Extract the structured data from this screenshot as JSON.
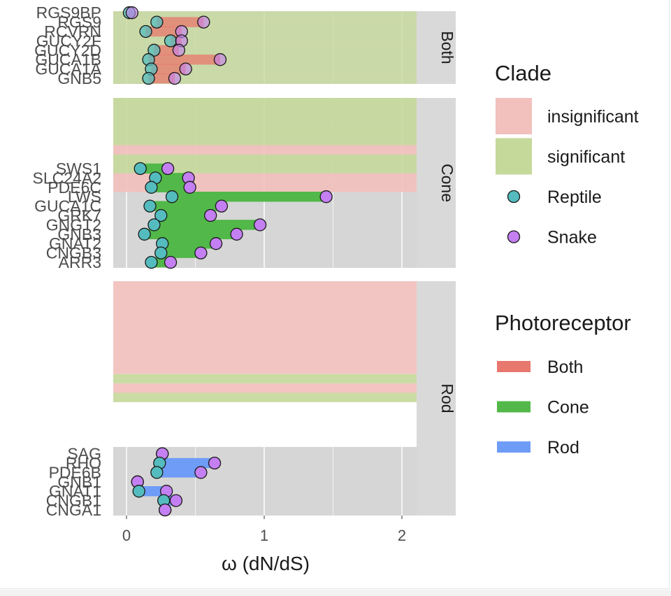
{
  "chart_data": {
    "type": "scatter",
    "xlabel": "ω (dN/dS)",
    "xlim": [
      -0.1,
      2.4
    ],
    "x_ticks": [
      "0",
      "1",
      "2"
    ],
    "x_tick_values": [
      0,
      1,
      2
    ],
    "colors": {
      "panel_bg": "#d6d6d6",
      "grid": "#f4f4f4",
      "strip_bg": "#d9d9d9",
      "insignificant": "#f2c0bd",
      "significant": "#c5d99b",
      "photo_Both": "#e8776e",
      "photo_Cone": "#52b849",
      "photo_Rod": "#6e9cf7",
      "Reptile": "#54bcbe",
      "Snake": "#c47ff2",
      "point_stroke": "#1a1a1a"
    },
    "panels": [
      {
        "strip": "Both",
        "genes": [
          {
            "name": "RGS9BP",
            "reptile": 0.02,
            "snake": 0.04,
            "clade": "significant"
          },
          {
            "name": "RGS9",
            "reptile": 0.22,
            "snake": 0.56,
            "clade": "significant"
          },
          {
            "name": "RCVRN",
            "reptile": 0.14,
            "snake": 0.4,
            "clade": "significant"
          },
          {
            "name": "GUCY2F",
            "reptile": 0.32,
            "snake": 0.4,
            "clade": "significant"
          },
          {
            "name": "GUCY2D",
            "reptile": 0.2,
            "snake": 0.38,
            "clade": "significant"
          },
          {
            "name": "GUCA1B",
            "reptile": 0.16,
            "snake": 0.68,
            "clade": "significant"
          },
          {
            "name": "GUCA1A",
            "reptile": 0.18,
            "snake": 0.43,
            "clade": "significant"
          },
          {
            "name": "GNB5",
            "reptile": 0.16,
            "snake": 0.35,
            "clade": "significant"
          }
        ]
      },
      {
        "strip": "Cone",
        "genes": [
          {
            "name": "",
            "reptile": null,
            "snake": null,
            "clade": "significant"
          },
          {
            "name": "",
            "reptile": null,
            "snake": null,
            "clade": "significant"
          },
          {
            "name": "",
            "reptile": null,
            "snake": null,
            "clade": "significant"
          },
          {
            "name": "",
            "reptile": null,
            "snake": null,
            "clade": "insignificant"
          },
          {
            "name": "",
            "reptile": null,
            "snake": null,
            "clade": "significant"
          },
          {
            "name": "SWS1",
            "reptile": 0.1,
            "snake": 0.3,
            "clade": "significant"
          },
          {
            "name": "SLC24A2",
            "reptile": 0.21,
            "snake": 0.45,
            "clade": "insignificant"
          },
          {
            "name": "PDE6C",
            "reptile": 0.18,
            "snake": 0.46,
            "clade": "insignificant"
          },
          {
            "name": "LWS",
            "reptile": 0.33,
            "snake": 1.45,
            "clade": ""
          },
          {
            "name": "GUCA1C",
            "reptile": 0.17,
            "snake": 0.69,
            "clade": ""
          },
          {
            "name": "GRK7",
            "reptile": 0.25,
            "snake": 0.61,
            "clade": ""
          },
          {
            "name": "GNGT2",
            "reptile": 0.2,
            "snake": 0.97,
            "clade": ""
          },
          {
            "name": "GNB3",
            "reptile": 0.13,
            "snake": 0.8,
            "clade": ""
          },
          {
            "name": "GNAT2",
            "reptile": 0.26,
            "snake": 0.65,
            "clade": ""
          },
          {
            "name": "CNGB3",
            "reptile": 0.25,
            "snake": 0.54,
            "clade": ""
          },
          {
            "name": "ARR3",
            "reptile": 0.18,
            "snake": 0.32,
            "clade": ""
          }
        ]
      },
      {
        "strip": "Rod",
        "genes": [
          {
            "name": "",
            "reptile": null,
            "snake": null,
            "clade": "insignificant"
          },
          {
            "name": "",
            "reptile": null,
            "snake": null,
            "clade": "significant"
          },
          {
            "name": "",
            "reptile": null,
            "snake": null,
            "clade": "insignificant"
          },
          {
            "name": "",
            "reptile": null,
            "snake": null,
            "clade": "significant"
          },
          {
            "name": "",
            "reptile": null,
            "snake": null,
            "clade": ""
          },
          {
            "name": "",
            "reptile": null,
            "snake": null,
            "clade": ""
          },
          {
            "name": "",
            "reptile": null,
            "snake": null,
            "clade": ""
          },
          {
            "name": "",
            "reptile": null,
            "snake": null,
            "clade": ""
          },
          {
            "name": "",
            "reptile": null,
            "snake": null,
            "clade": ""
          },
          {
            "name": "SAG",
            "reptile": 0.26,
            "snake": 0.26,
            "clade": ""
          },
          {
            "name": "RHO",
            "reptile": 0.24,
            "snake": 0.64,
            "clade": ""
          },
          {
            "name": "PDE6B",
            "reptile": 0.22,
            "snake": 0.54,
            "clade": ""
          },
          {
            "name": "GNB1",
            "reptile": 0.08,
            "snake": 0.08,
            "clade": ""
          },
          {
            "name": "GNAT1",
            "reptile": 0.09,
            "snake": 0.29,
            "clade": ""
          },
          {
            "name": "CNGB1",
            "reptile": 0.27,
            "snake": 0.36,
            "clade": ""
          },
          {
            "name": "CNGA1",
            "reptile": 0.28,
            "snake": 0.28,
            "clade": ""
          }
        ]
      }
    ],
    "legend_clade": {
      "title": "Clade",
      "items": [
        {
          "label": "insignificant",
          "kind": "fill",
          "color_key": "insignificant"
        },
        {
          "label": "significant",
          "kind": "fill",
          "color_key": "significant"
        },
        {
          "label": "Reptile",
          "kind": "point",
          "color_key": "Reptile"
        },
        {
          "label": "Snake",
          "kind": "point",
          "color_key": "Snake"
        }
      ]
    },
    "legend_photoreceptor": {
      "title": "Photoreceptor",
      "items": [
        {
          "label": "Both",
          "color_key": "photo_Both"
        },
        {
          "label": "Cone",
          "color_key": "photo_Cone"
        },
        {
          "label": "Rod",
          "color_key": "photo_Rod"
        }
      ]
    },
    "legend_placement": "right",
    "grid": true
  }
}
